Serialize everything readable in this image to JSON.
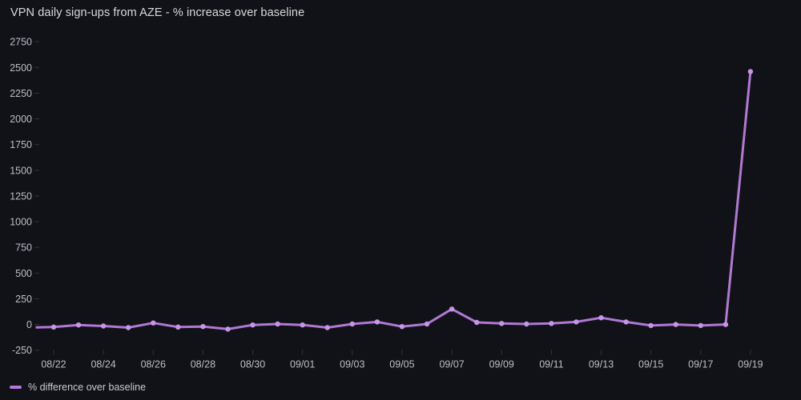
{
  "panel": {
    "background": "#111217",
    "title_color": "#d8d9da",
    "axis_text_color": "#bdbfc6",
    "tick_mark_color": "rgba(204,204,220,0.18)"
  },
  "chart_data": {
    "type": "line",
    "title": "VPN daily sign-ups from AZE - % increase over baseline",
    "xlabel": "",
    "ylabel": "",
    "grid": false,
    "legend_position": "bottom-left",
    "ylim": [
      -250,
      2750
    ],
    "x": [
      "08/21",
      "08/22",
      "08/23",
      "08/24",
      "08/25",
      "08/26",
      "08/27",
      "08/28",
      "08/29",
      "08/30",
      "08/31",
      "09/01",
      "09/02",
      "09/03",
      "09/04",
      "09/05",
      "09/06",
      "09/07",
      "09/08",
      "09/09",
      "09/10",
      "09/11",
      "09/12",
      "09/13",
      "09/14",
      "09/15",
      "09/16",
      "09/17",
      "09/18",
      "09/19"
    ],
    "series": [
      {
        "name": "% difference over baseline",
        "color": "#b178d6",
        "point_color": "#c795e5",
        "values": [
          -30,
          -25,
          -5,
          -15,
          -30,
          15,
          -25,
          -20,
          -45,
          -5,
          5,
          -5,
          -30,
          5,
          25,
          -20,
          5,
          150,
          20,
          10,
          5,
          10,
          25,
          65,
          25,
          -10,
          0,
          -10,
          0,
          2460
        ]
      }
    ],
    "x_axis": {
      "tick_labels": [
        "08/22",
        "08/24",
        "08/26",
        "08/28",
        "08/30",
        "09/01",
        "09/03",
        "09/05",
        "09/07",
        "09/09",
        "09/11",
        "09/13",
        "09/15",
        "09/17",
        "09/19"
      ]
    },
    "y_axis": {
      "ticks": [
        -250,
        0,
        250,
        500,
        750,
        1000,
        1250,
        1500,
        1750,
        2000,
        2250,
        2500,
        2750
      ]
    }
  }
}
